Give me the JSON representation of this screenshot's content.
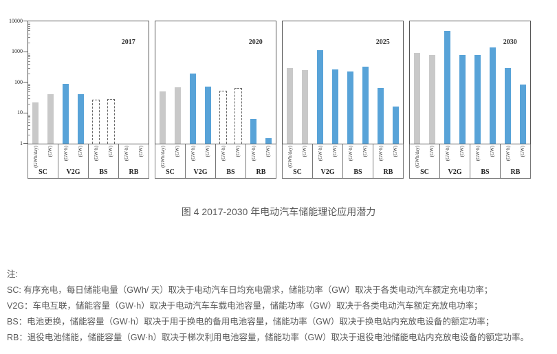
{
  "figure_caption": "图 4  2017-2030 年电动汽车储能理论应用潜力",
  "notes": {
    "heading": "注:",
    "lines": [
      "SC: 有序充电，每日储能电量（GWh/ 天）取决于电动汽车日均充电需求，储能功率（GW）取决于各类电动汽车额定充电功率；",
      "V2G：车电互联，储能容量（GW·h）取决于电动汽车车载电池容量，储能功率（GW）取决于各类电动汽车额定充放电功率；",
      "BS：电池更换，储能容量（GW·h）取决于用于换电的备用电池容量，储能功率（GW）取决于换电站内充放电设备的额定功率；",
      "RB：退役电池储能，储能容量（GW·h）取决于梯次利用电池容量，储能功率（GW）取决于退役电池储能电站内充放电设备的额定功率。"
    ]
  },
  "chart_data": {
    "type": "bar",
    "y_scale": "log",
    "ylim": [
      1,
      10000
    ],
    "yticks": [
      10000,
      1000,
      100,
      10,
      1
    ],
    "categories": [
      "SC",
      "V2G",
      "BS",
      "RB"
    ],
    "legend": "none",
    "grid": "off",
    "colors": {
      "gray_bar": "#c9c9c9",
      "blue_bar": "#58a3d8",
      "dashed_outline": "#666666",
      "axis": "#555555",
      "text": "#595959"
    },
    "panels": [
      {
        "year": "2017",
        "groups": [
          {
            "name": "SC",
            "bars": [
              {
                "label": "(GWh/day)",
                "value": 22,
                "style": "gray"
              },
              {
                "label": "(GW)",
                "value": 42,
                "style": "gray"
              }
            ]
          },
          {
            "name": "V2G",
            "bars": [
              {
                "label": "(GW·h)",
                "value": 90,
                "style": "blue"
              },
              {
                "label": "(GW)",
                "value": 42,
                "style": "blue"
              }
            ]
          },
          {
            "name": "BS",
            "bars": [
              {
                "label": "(GW·h)",
                "value": 28,
                "style": "dashed"
              },
              {
                "label": "(GW)",
                "value": 29,
                "style": "dashed"
              }
            ]
          },
          {
            "name": "RB",
            "bars": [
              {
                "label": "(GW·h)",
                "value": null,
                "style": "blue"
              },
              {
                "label": "(GW)",
                "value": null,
                "style": "blue"
              }
            ]
          }
        ]
      },
      {
        "year": "2020",
        "groups": [
          {
            "name": "SC",
            "bars": [
              {
                "label": "(GWh/day)",
                "value": 50,
                "style": "gray"
              },
              {
                "label": "(GW)",
                "value": 70,
                "style": "gray"
              }
            ]
          },
          {
            "name": "V2G",
            "bars": [
              {
                "label": "(GW·h)",
                "value": 200,
                "style": "blue"
              },
              {
                "label": "(GW)",
                "value": 72,
                "style": "blue"
              }
            ]
          },
          {
            "name": "BS",
            "bars": [
              {
                "label": "(GW·h)",
                "value": 55,
                "style": "dashed"
              },
              {
                "label": "(GW)",
                "value": 68,
                "style": "dashed"
              }
            ]
          },
          {
            "name": "RB",
            "bars": [
              {
                "label": "(GW·h)",
                "value": 6.5,
                "style": "blue"
              },
              {
                "label": "(GW)",
                "value": 1.5,
                "style": "blue"
              }
            ]
          }
        ]
      },
      {
        "year": "2025",
        "groups": [
          {
            "name": "SC",
            "bars": [
              {
                "label": "(GWh/day)",
                "value": 290,
                "style": "gray"
              },
              {
                "label": "(GW)",
                "value": 260,
                "style": "gray"
              }
            ]
          },
          {
            "name": "V2G",
            "bars": [
              {
                "label": "(GW·h)",
                "value": 1150,
                "style": "blue"
              },
              {
                "label": "(GW)",
                "value": 270,
                "style": "blue"
              }
            ]
          },
          {
            "name": "BS",
            "bars": [
              {
                "label": "(GW·h)",
                "value": 230,
                "style": "blue"
              },
              {
                "label": "(GW)",
                "value": 330,
                "style": "blue"
              }
            ]
          },
          {
            "name": "RB",
            "bars": [
              {
                "label": "(GW·h)",
                "value": 65,
                "style": "blue"
              },
              {
                "label": "(GW)",
                "value": 16,
                "style": "blue"
              }
            ]
          }
        ]
      },
      {
        "year": "2030",
        "groups": [
          {
            "name": "SC",
            "bars": [
              {
                "label": "(GWh/day)",
                "value": 950,
                "style": "gray"
              },
              {
                "label": "(GW)",
                "value": 800,
                "style": "gray"
              }
            ]
          },
          {
            "name": "V2G",
            "bars": [
              {
                "label": "(GW·h)",
                "value": 4800,
                "style": "blue"
              },
              {
                "label": "(GW)",
                "value": 800,
                "style": "blue"
              }
            ]
          },
          {
            "name": "BS",
            "bars": [
              {
                "label": "(GW·h)",
                "value": 780,
                "style": "blue"
              },
              {
                "label": "(GW)",
                "value": 1400,
                "style": "blue"
              }
            ]
          },
          {
            "name": "RB",
            "bars": [
              {
                "label": "(GW·h)",
                "value": 300,
                "style": "blue"
              },
              {
                "label": "(GW)",
                "value": 85,
                "style": "blue"
              }
            ]
          }
        ]
      }
    ]
  }
}
